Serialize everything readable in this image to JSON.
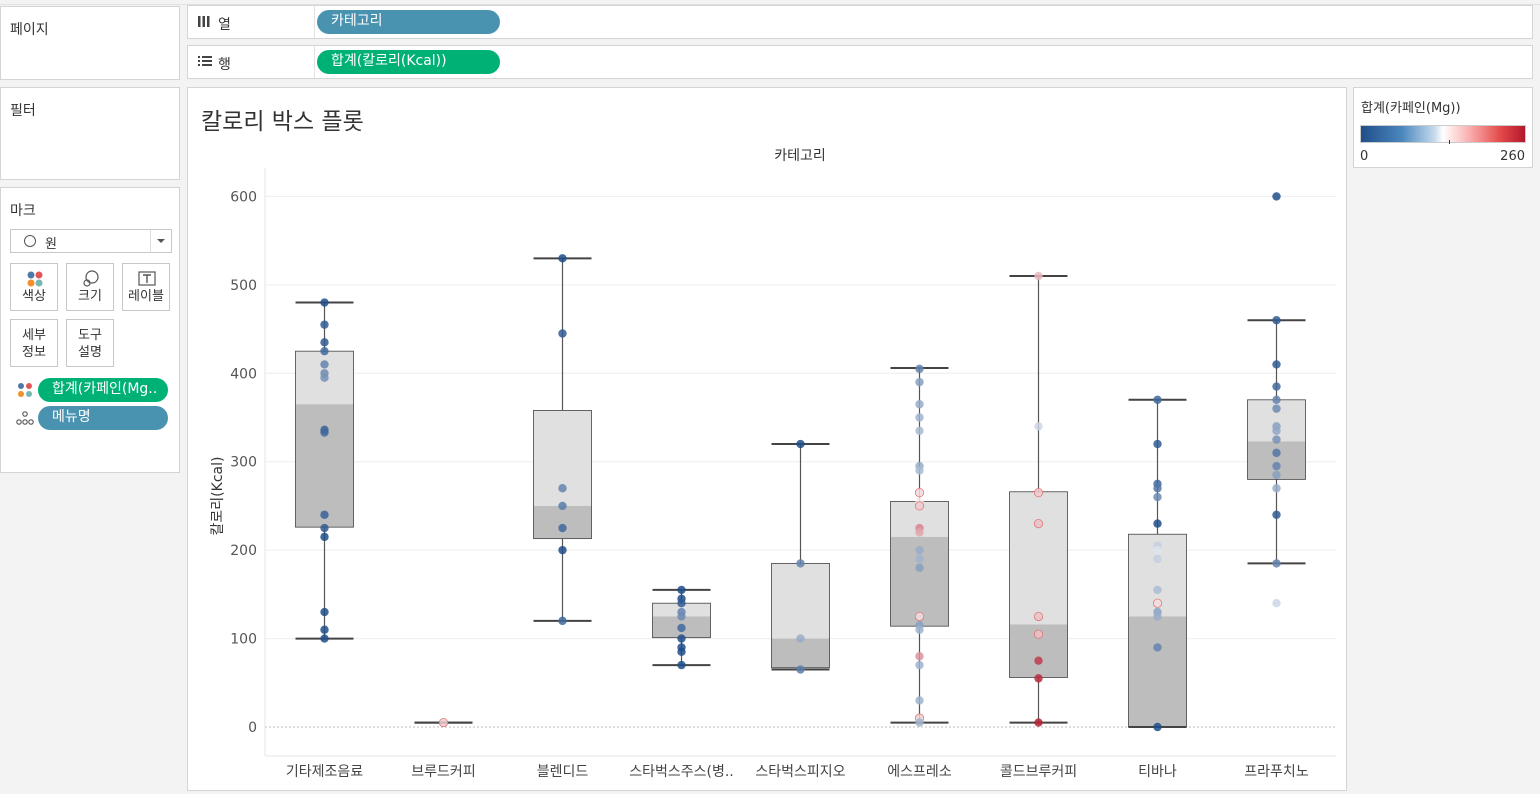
{
  "shelves": {
    "pages_label": "페이지",
    "columns": {
      "label": "열",
      "pill": "카테고리"
    },
    "rows": {
      "label": "행",
      "pill": "합계(칼로리(Kcal))"
    },
    "filters_label": "필터"
  },
  "marks": {
    "title": "마크",
    "type": "원",
    "buttons": {
      "color": "색상",
      "size": "크기",
      "label": "레이블",
      "detail": "세부\n정보",
      "tooltip": "도구\n설명"
    },
    "fields": [
      {
        "pill": "합계(카페인(Mg..",
        "kind": "color"
      },
      {
        "pill": "메뉴명",
        "kind": "detail"
      }
    ]
  },
  "legend": {
    "title": "합계(카페인(Mg))",
    "min": "0",
    "max": "260"
  },
  "chart_data": {
    "type": "box",
    "title": "칼로리 박스 플롯",
    "column_header": "카테고리",
    "ylabel": "칼로리(Kcal)",
    "ylim": [
      -30,
      630
    ],
    "yticks": [
      0,
      100,
      200,
      300,
      400,
      500,
      600
    ],
    "grid": true,
    "color_scale": {
      "field": "합계(카페인(Mg))",
      "min": 0,
      "max": 260,
      "low": "#1f4e8a",
      "mid": "#ffffff",
      "high": "#b2182b"
    },
    "categories": [
      "기타제조음료",
      "브루드커피",
      "블렌디드",
      "스타벅스주스(병..",
      "스타벅스피지오",
      "에스프레소",
      "콜드브루커피",
      "티바나",
      "프라푸치노"
    ],
    "boxes": [
      {
        "low": 100,
        "q1": 226,
        "median": 365,
        "q3": 425,
        "high": 480
      },
      {
        "low": 5,
        "q1": 5,
        "median": 5,
        "q3": 5,
        "high": 5
      },
      {
        "low": 120,
        "q1": 213,
        "median": 250,
        "q3": 358,
        "high": 530
      },
      {
        "low": 70,
        "q1": 101,
        "median": 125,
        "q3": 140,
        "high": 155
      },
      {
        "low": 65,
        "q1": 67,
        "median": 100,
        "q3": 185,
        "high": 320
      },
      {
        "low": 5,
        "q1": 114,
        "median": 215,
        "q3": 255,
        "high": 406
      },
      {
        "low": 5,
        "q1": 56,
        "median": 116,
        "q3": 266,
        "high": 510
      },
      {
        "low": 0,
        "q1": 0,
        "median": 125,
        "q3": 218,
        "high": 370
      },
      {
        "low": 185,
        "q1": 280,
        "median": 323,
        "q3": 370,
        "high": 460
      }
    ],
    "points": [
      {
        "cat": 0,
        "y": 480,
        "caffeine": 0
      },
      {
        "cat": 0,
        "y": 455,
        "caffeine": 10
      },
      {
        "cat": 0,
        "y": 435,
        "caffeine": 10
      },
      {
        "cat": 0,
        "y": 425,
        "caffeine": 20
      },
      {
        "cat": 0,
        "y": 410,
        "caffeine": 40
      },
      {
        "cat": 0,
        "y": 400,
        "caffeine": 45
      },
      {
        "cat": 0,
        "y": 395,
        "caffeine": 50
      },
      {
        "cat": 0,
        "y": 336,
        "caffeine": 15
      },
      {
        "cat": 0,
        "y": 333,
        "caffeine": 20
      },
      {
        "cat": 0,
        "y": 240,
        "caffeine": 15
      },
      {
        "cat": 0,
        "y": 225,
        "caffeine": 10
      },
      {
        "cat": 0,
        "y": 215,
        "caffeine": 0
      },
      {
        "cat": 0,
        "y": 130,
        "caffeine": 0
      },
      {
        "cat": 0,
        "y": 110,
        "caffeine": 0
      },
      {
        "cat": 0,
        "y": 100,
        "caffeine": 0
      },
      {
        "cat": 1,
        "y": 5,
        "caffeine": 160
      },
      {
        "cat": 2,
        "y": 530,
        "caffeine": 0
      },
      {
        "cat": 2,
        "y": 445,
        "caffeine": 10
      },
      {
        "cat": 2,
        "y": 270,
        "caffeine": 40
      },
      {
        "cat": 2,
        "y": 250,
        "caffeine": 35
      },
      {
        "cat": 2,
        "y": 225,
        "caffeine": 20
      },
      {
        "cat": 2,
        "y": 200,
        "caffeine": 0
      },
      {
        "cat": 2,
        "y": 120,
        "caffeine": 20
      },
      {
        "cat": 3,
        "y": 155,
        "caffeine": 0
      },
      {
        "cat": 3,
        "y": 145,
        "caffeine": 0
      },
      {
        "cat": 3,
        "y": 140,
        "caffeine": 10
      },
      {
        "cat": 3,
        "y": 130,
        "caffeine": 40
      },
      {
        "cat": 3,
        "y": 125,
        "caffeine": 45
      },
      {
        "cat": 3,
        "y": 112,
        "caffeine": 20
      },
      {
        "cat": 3,
        "y": 100,
        "caffeine": 0
      },
      {
        "cat": 3,
        "y": 90,
        "caffeine": 0
      },
      {
        "cat": 3,
        "y": 85,
        "caffeine": 0
      },
      {
        "cat": 3,
        "y": 70,
        "caffeine": 0
      },
      {
        "cat": 4,
        "y": 320,
        "caffeine": 0
      },
      {
        "cat": 4,
        "y": 185,
        "caffeine": 40
      },
      {
        "cat": 4,
        "y": 100,
        "caffeine": 70
      },
      {
        "cat": 4,
        "y": 65,
        "caffeine": 35
      },
      {
        "cat": 5,
        "y": 405,
        "caffeine": 40
      },
      {
        "cat": 5,
        "y": 390,
        "caffeine": 60
      },
      {
        "cat": 5,
        "y": 365,
        "caffeine": 70
      },
      {
        "cat": 5,
        "y": 350,
        "caffeine": 75
      },
      {
        "cat": 5,
        "y": 335,
        "caffeine": 80
      },
      {
        "cat": 5,
        "y": 295,
        "caffeine": 70
      },
      {
        "cat": 5,
        "y": 290,
        "caffeine": 80
      },
      {
        "cat": 5,
        "y": 265,
        "caffeine": 150
      },
      {
        "cat": 5,
        "y": 255,
        "caffeine": 140
      },
      {
        "cat": 5,
        "y": 250,
        "caffeine": 160
      },
      {
        "cat": 5,
        "y": 225,
        "caffeine": 200
      },
      {
        "cat": 5,
        "y": 220,
        "caffeine": 180
      },
      {
        "cat": 5,
        "y": 200,
        "caffeine": 70
      },
      {
        "cat": 5,
        "y": 190,
        "caffeine": 75
      },
      {
        "cat": 5,
        "y": 180,
        "caffeine": 60
      },
      {
        "cat": 5,
        "y": 125,
        "caffeine": 150
      },
      {
        "cat": 5,
        "y": 115,
        "caffeine": 60
      },
      {
        "cat": 5,
        "y": 110,
        "caffeine": 75
      },
      {
        "cat": 5,
        "y": 80,
        "caffeine": 190
      },
      {
        "cat": 5,
        "y": 70,
        "caffeine": 75
      },
      {
        "cat": 5,
        "y": 30,
        "caffeine": 75
      },
      {
        "cat": 5,
        "y": 10,
        "caffeine": 155
      },
      {
        "cat": 5,
        "y": 5,
        "caffeine": 75
      },
      {
        "cat": 6,
        "y": 510,
        "caffeine": 170
      },
      {
        "cat": 6,
        "y": 340,
        "caffeine": 100
      },
      {
        "cat": 6,
        "y": 265,
        "caffeine": 160
      },
      {
        "cat": 6,
        "y": 230,
        "caffeine": 165
      },
      {
        "cat": 6,
        "y": 125,
        "caffeine": 165
      },
      {
        "cat": 6,
        "y": 105,
        "caffeine": 165
      },
      {
        "cat": 6,
        "y": 75,
        "caffeine": 240
      },
      {
        "cat": 6,
        "y": 55,
        "caffeine": 250
      },
      {
        "cat": 6,
        "y": 5,
        "caffeine": 255
      },
      {
        "cat": 7,
        "y": 370,
        "caffeine": 20
      },
      {
        "cat": 7,
        "y": 320,
        "caffeine": 10
      },
      {
        "cat": 7,
        "y": 275,
        "caffeine": 20
      },
      {
        "cat": 7,
        "y": 270,
        "caffeine": 30
      },
      {
        "cat": 7,
        "y": 260,
        "caffeine": 45
      },
      {
        "cat": 7,
        "y": 230,
        "caffeine": 0
      },
      {
        "cat": 7,
        "y": 205,
        "caffeine": 95
      },
      {
        "cat": 7,
        "y": 200,
        "caffeine": 110
      },
      {
        "cat": 7,
        "y": 190,
        "caffeine": 95
      },
      {
        "cat": 7,
        "y": 155,
        "caffeine": 80
      },
      {
        "cat": 7,
        "y": 140,
        "caffeine": 150
      },
      {
        "cat": 7,
        "y": 130,
        "caffeine": 60
      },
      {
        "cat": 7,
        "y": 125,
        "caffeine": 70
      },
      {
        "cat": 7,
        "y": 90,
        "caffeine": 40
      },
      {
        "cat": 7,
        "y": 0,
        "caffeine": 0
      },
      {
        "cat": 8,
        "y": 600,
        "caffeine": 0
      },
      {
        "cat": 8,
        "y": 460,
        "caffeine": 10
      },
      {
        "cat": 8,
        "y": 410,
        "caffeine": 10
      },
      {
        "cat": 8,
        "y": 385,
        "caffeine": 20
      },
      {
        "cat": 8,
        "y": 370,
        "caffeine": 40
      },
      {
        "cat": 8,
        "y": 360,
        "caffeine": 45
      },
      {
        "cat": 8,
        "y": 340,
        "caffeine": 60
      },
      {
        "cat": 8,
        "y": 335,
        "caffeine": 65
      },
      {
        "cat": 8,
        "y": 325,
        "caffeine": 50
      },
      {
        "cat": 8,
        "y": 310,
        "caffeine": 30
      },
      {
        "cat": 8,
        "y": 295,
        "caffeine": 40
      },
      {
        "cat": 8,
        "y": 285,
        "caffeine": 60
      },
      {
        "cat": 8,
        "y": 270,
        "caffeine": 70
      },
      {
        "cat": 8,
        "y": 240,
        "caffeine": 10
      },
      {
        "cat": 8,
        "y": 185,
        "caffeine": 40
      },
      {
        "cat": 8,
        "y": 140,
        "caffeine": 100
      }
    ]
  }
}
